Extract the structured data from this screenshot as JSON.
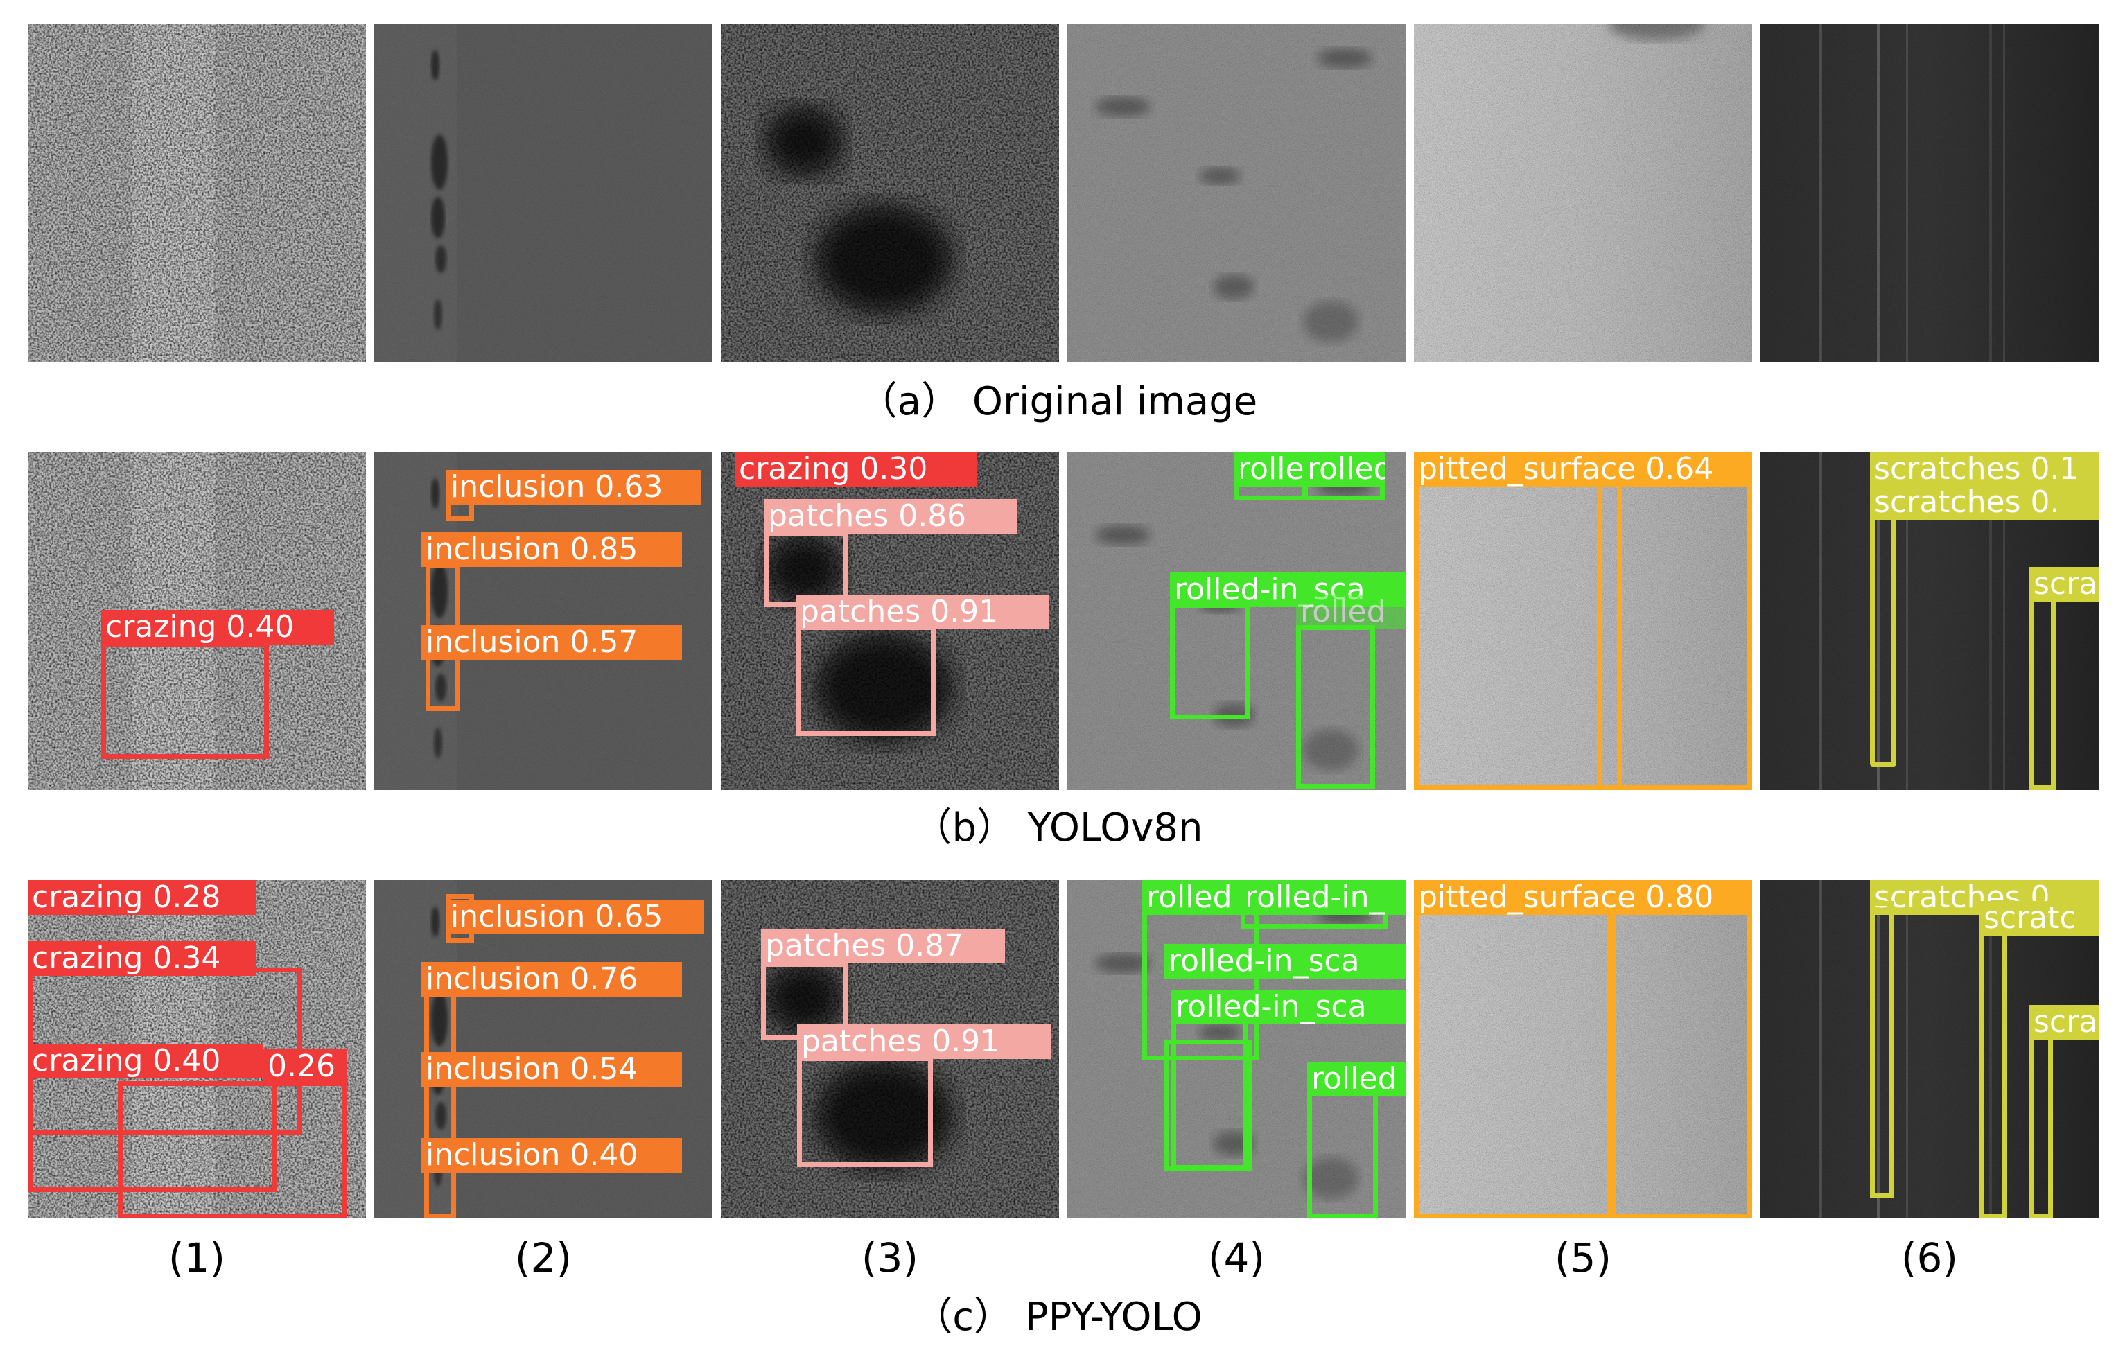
{
  "captions": {
    "a": "（a） Original image",
    "b": "（b） YOLOv8n",
    "c": "（c） PPY-YOLO"
  },
  "columns": [
    "(1)",
    "(2)",
    "(3)",
    "(4)",
    "(5)",
    "(6)"
  ],
  "colors": {
    "crazing": "#f03a3a",
    "inclusion": "#f47a2a",
    "patches": "#f4a8a4",
    "rolled": "#44e62a",
    "pitted": "#fbaa22",
    "scratches": "#cfd23a"
  },
  "yolov8n": {
    "c1": [
      "crazing 0.40"
    ],
    "c2": [
      "inclusion 0.63",
      "inclusion 0.85",
      "inclusion 0.57"
    ],
    "c3": [
      "crazing 0.30",
      "patches 0.86",
      "patches 0.91"
    ],
    "c4": [
      "rolle",
      "rolled",
      "rolled-in_sca",
      "rolled"
    ],
    "c5": [
      "pitted_surface 0.64"
    ],
    "c6": [
      "scratches 0.1",
      "scratches 0.",
      "scra"
    ]
  },
  "ppyolo": {
    "c1": [
      "crazing 0.28",
      "crazing 0.34",
      "crazing 0.40",
      "0.26"
    ],
    "c2": [
      "inclusion 0.65",
      "inclusion 0.76",
      "inclusion 0.54",
      "inclusion 0.40"
    ],
    "c3": [
      "patches 0.87",
      "patches 0.91"
    ],
    "c4": [
      "rolled",
      "rolled-in_",
      "rolled-in_sca",
      "rolled-in_sca",
      "rolled"
    ],
    "c5": [
      "pitted_surface 0.80"
    ],
    "c6": [
      "scratches 0.",
      "scratc",
      "scra"
    ]
  }
}
